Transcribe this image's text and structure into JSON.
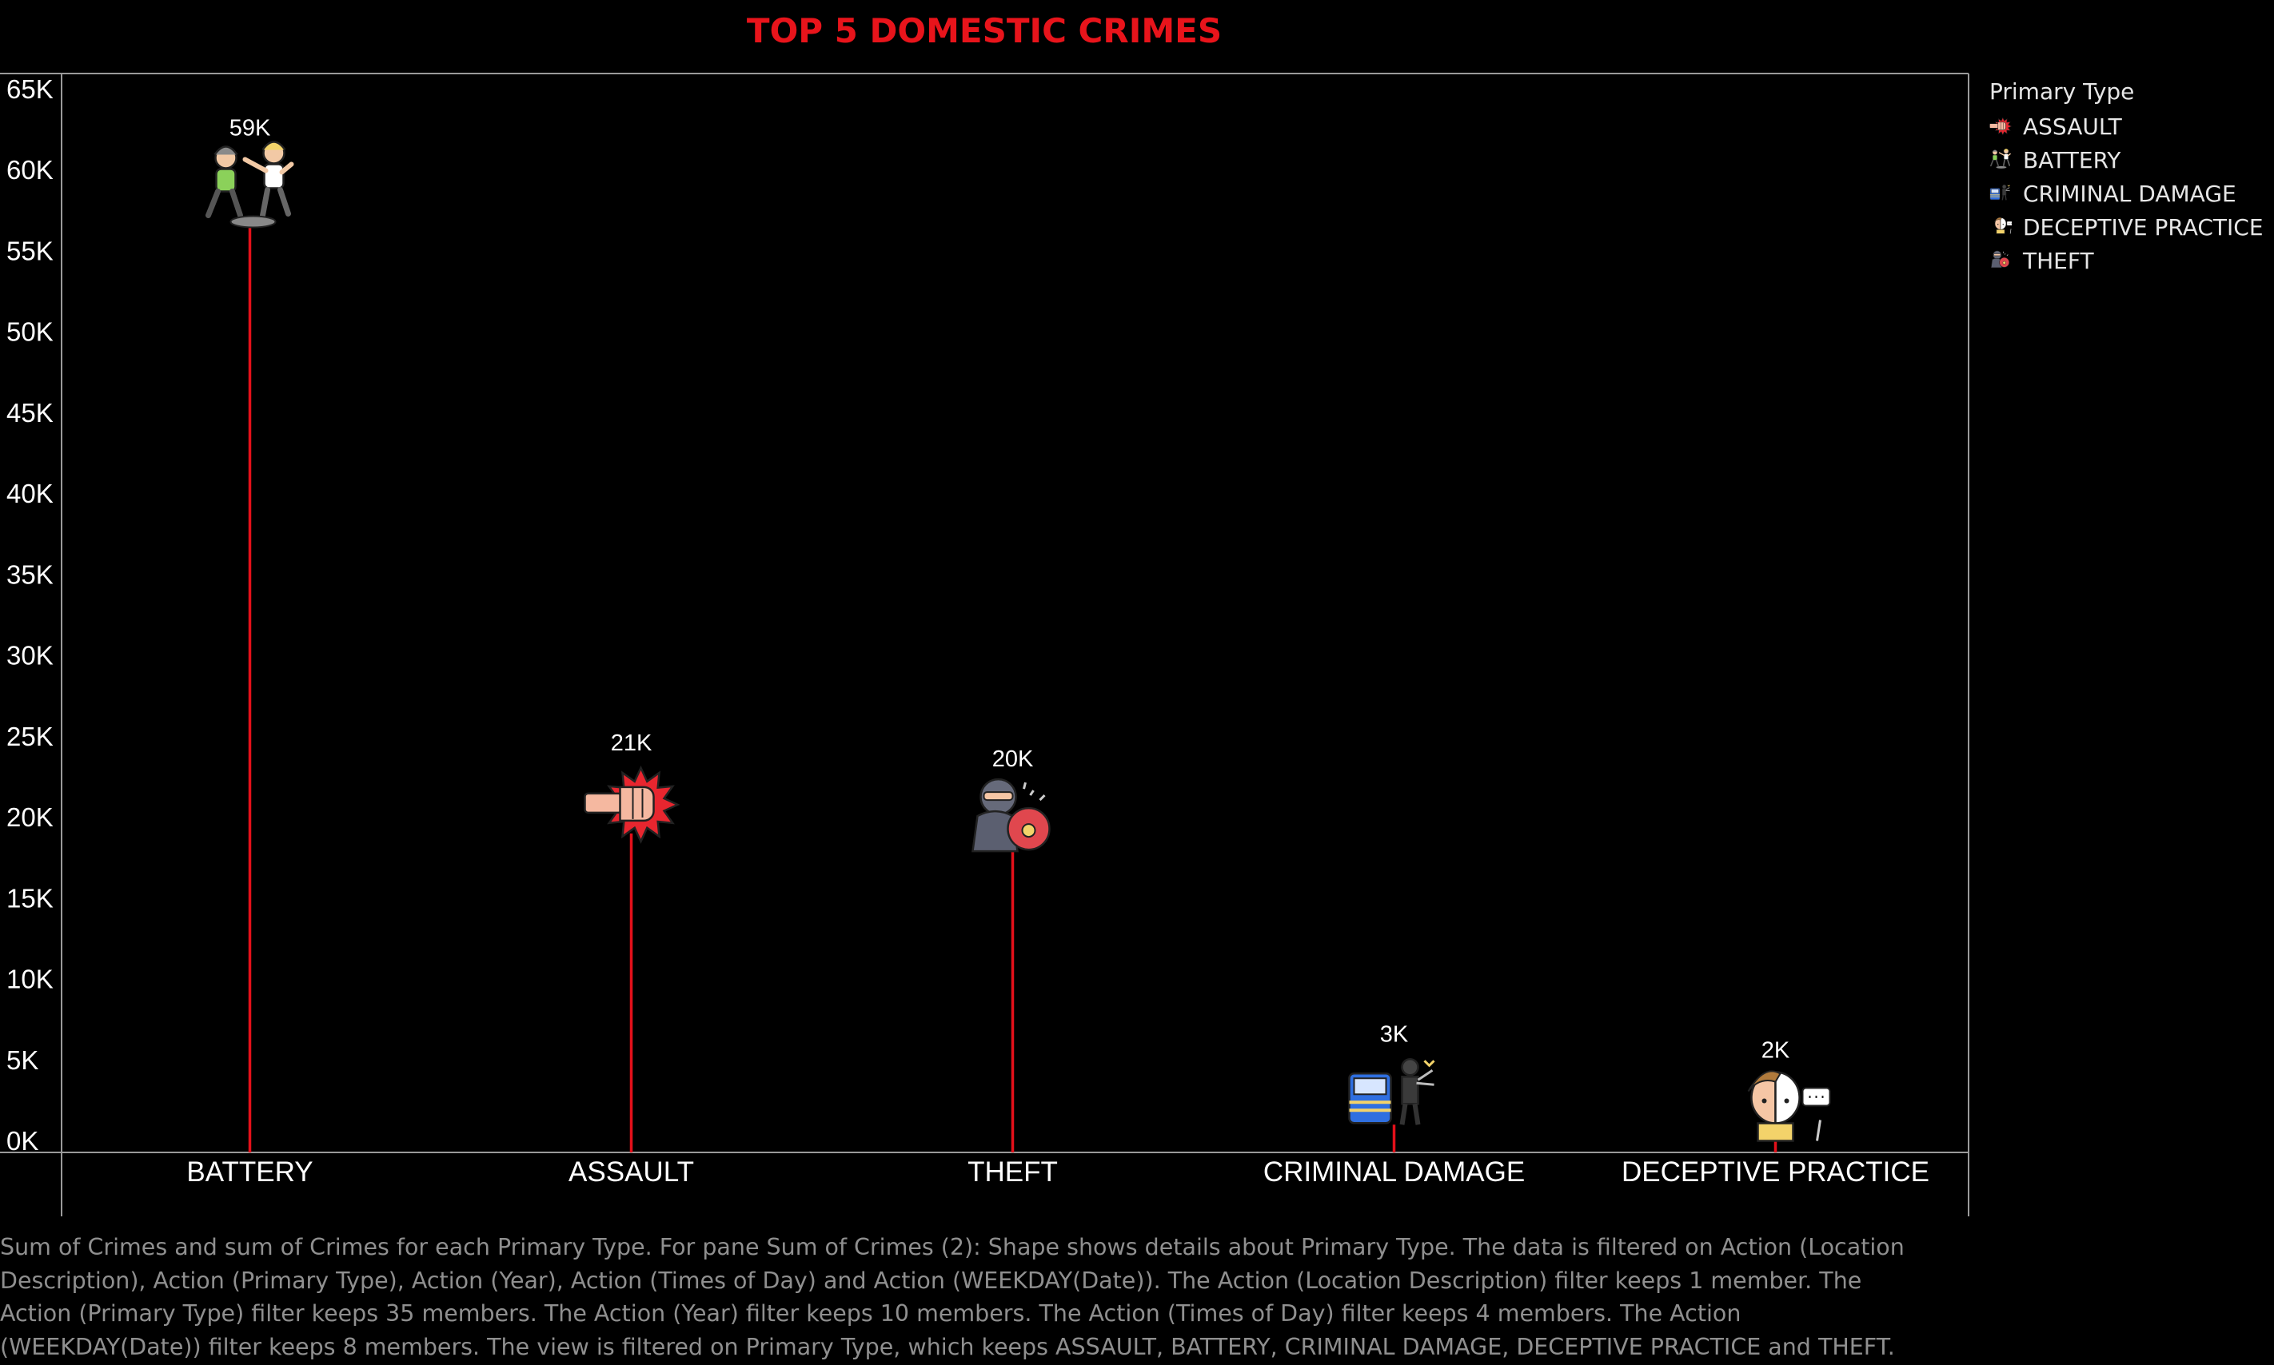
{
  "chart_data": {
    "type": "lollipop",
    "title": "TOP 5 DOMESTIC CRIMES",
    "xlabel": "",
    "ylabel": "",
    "categories": [
      "BATTERY",
      "ASSAULT",
      "THEFT",
      "CRIMINAL DAMAGE",
      "DECEPTIVE PRACTICE"
    ],
    "values": [
      59000,
      21000,
      20000,
      3000,
      2000
    ],
    "data_labels": [
      "59K",
      "21K",
      "20K",
      "3K",
      "2K"
    ],
    "ylim": [
      0,
      65000
    ],
    "yticks": [
      0,
      5000,
      10000,
      15000,
      20000,
      25000,
      30000,
      35000,
      40000,
      45000,
      50000,
      55000,
      60000,
      65000
    ],
    "ytick_labels": [
      "0K",
      "5K",
      "10K",
      "15K",
      "20K",
      "25K",
      "30K",
      "35K",
      "40K",
      "45K",
      "50K",
      "55K",
      "60K",
      "65K"
    ],
    "grid": false,
    "line_color": "#e3101a",
    "legend": {
      "title": "Primary Type",
      "placement": "right",
      "items": [
        {
          "label": "ASSAULT",
          "icon": "fist-punch-icon"
        },
        {
          "label": "BATTERY",
          "icon": "people-fighting-icon"
        },
        {
          "label": "CRIMINAL DAMAGE",
          "icon": "vandal-car-icon"
        },
        {
          "label": "DECEPTIVE PRACTICE",
          "icon": "two-faced-man-icon"
        },
        {
          "label": "THEFT",
          "icon": "thief-with-bag-icon"
        }
      ]
    }
  },
  "caption": "Sum of Crimes and sum of Crimes for each Primary Type.  For pane Sum of Crimes (2):  Shape shows details about Primary Type. The data is filtered on Action (Location Description), Action (Primary Type), Action (Year), Action (Times of Day) and Action (WEEKDAY(Date)). The Action (Location Description) filter keeps 1 member. The Action (Primary Type) filter keeps 35 members. The Action (Year) filter keeps 10 members. The Action (Times of Day) filter keeps 4 members. The Action (WEEKDAY(Date)) filter keeps 8 members. The view is filtered on Primary Type, which keeps ASSAULT, BATTERY, CRIMINAL DAMAGE, DECEPTIVE PRACTICE and THEFT."
}
